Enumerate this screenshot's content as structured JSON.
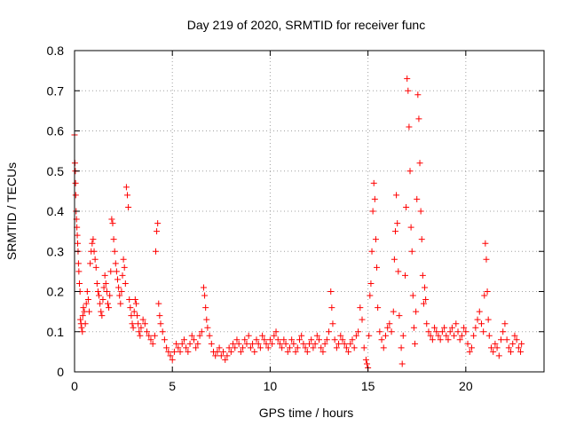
{
  "chart_data": {
    "type": "scatter",
    "title": "Day 219 of 2020, SRMTID for receiver func",
    "xlabel": "GPS time / hours",
    "ylabel": "SRMTID / TECUs",
    "xlim": [
      0,
      24
    ],
    "ylim": [
      0,
      0.8
    ],
    "xticks": [
      0,
      5,
      10,
      15,
      20
    ],
    "xtick_labels": [
      "0",
      "5",
      "10",
      "15",
      "20"
    ],
    "yticks": [
      0,
      0.1,
      0.2,
      0.3,
      0.4,
      0.5,
      0.6,
      0.7,
      0.8
    ],
    "ytick_labels": [
      "0",
      "0.1",
      "0.2",
      "0.3",
      "0.4",
      "0.5",
      "0.6",
      "0.7",
      "0.8"
    ],
    "grid": true,
    "marker": "+",
    "color": "#ff0000",
    "series": [
      {
        "name": "SRMTID",
        "points": [
          [
            0.0,
            0.59
          ],
          [
            0.02,
            0.52
          ],
          [
            0.04,
            0.5
          ],
          [
            0.05,
            0.47
          ],
          [
            0.06,
            0.44
          ],
          [
            0.08,
            0.4
          ],
          [
            0.1,
            0.38
          ],
          [
            0.12,
            0.36
          ],
          [
            0.14,
            0.34
          ],
          [
            0.16,
            0.32
          ],
          [
            0.18,
            0.3
          ],
          [
            0.2,
            0.27
          ],
          [
            0.22,
            0.25
          ],
          [
            0.25,
            0.22
          ],
          [
            0.28,
            0.2
          ],
          [
            0.3,
            0.13
          ],
          [
            0.33,
            0.12
          ],
          [
            0.36,
            0.11
          ],
          [
            0.4,
            0.1
          ],
          [
            0.42,
            0.14
          ],
          [
            0.45,
            0.16
          ],
          [
            0.5,
            0.15
          ],
          [
            0.55,
            0.12
          ],
          [
            0.6,
            0.17
          ],
          [
            0.65,
            0.2
          ],
          [
            0.7,
            0.18
          ],
          [
            0.75,
            0.15
          ],
          [
            0.8,
            0.27
          ],
          [
            0.85,
            0.3
          ],
          [
            0.9,
            0.32
          ],
          [
            0.95,
            0.33
          ],
          [
            1.0,
            0.3
          ],
          [
            1.05,
            0.28
          ],
          [
            1.1,
            0.26
          ],
          [
            1.15,
            0.22
          ],
          [
            1.2,
            0.2
          ],
          [
            1.25,
            0.19
          ],
          [
            1.3,
            0.17
          ],
          [
            1.35,
            0.15
          ],
          [
            1.4,
            0.14
          ],
          [
            1.45,
            0.18
          ],
          [
            1.5,
            0.21
          ],
          [
            1.55,
            0.24
          ],
          [
            1.6,
            0.22
          ],
          [
            1.65,
            0.2
          ],
          [
            1.7,
            0.17
          ],
          [
            1.75,
            0.16
          ],
          [
            1.8,
            0.19
          ],
          [
            1.85,
            0.25
          ],
          [
            1.9,
            0.38
          ],
          [
            1.95,
            0.37
          ],
          [
            2.0,
            0.33
          ],
          [
            2.05,
            0.3
          ],
          [
            2.1,
            0.27
          ],
          [
            2.15,
            0.25
          ],
          [
            2.2,
            0.23
          ],
          [
            2.25,
            0.21
          ],
          [
            2.3,
            0.19
          ],
          [
            2.35,
            0.17
          ],
          [
            2.4,
            0.2
          ],
          [
            2.45,
            0.24
          ],
          [
            2.5,
            0.28
          ],
          [
            2.55,
            0.26
          ],
          [
            2.6,
            0.22
          ],
          [
            2.65,
            0.46
          ],
          [
            2.7,
            0.44
          ],
          [
            2.75,
            0.41
          ],
          [
            2.8,
            0.18
          ],
          [
            2.85,
            0.16
          ],
          [
            2.9,
            0.14
          ],
          [
            2.95,
            0.12
          ],
          [
            3.0,
            0.11
          ],
          [
            3.05,
            0.15
          ],
          [
            3.1,
            0.18
          ],
          [
            3.15,
            0.17
          ],
          [
            3.2,
            0.14
          ],
          [
            3.25,
            0.12
          ],
          [
            3.3,
            0.1
          ],
          [
            3.35,
            0.09
          ],
          [
            3.4,
            0.11
          ],
          [
            3.5,
            0.13
          ],
          [
            3.6,
            0.12
          ],
          [
            3.7,
            0.1
          ],
          [
            3.8,
            0.09
          ],
          [
            3.9,
            0.08
          ],
          [
            4.0,
            0.07
          ],
          [
            4.1,
            0.09
          ],
          [
            4.15,
            0.3
          ],
          [
            4.2,
            0.35
          ],
          [
            4.25,
            0.37
          ],
          [
            4.3,
            0.17
          ],
          [
            4.35,
            0.14
          ],
          [
            4.4,
            0.12
          ],
          [
            4.5,
            0.1
          ],
          [
            4.6,
            0.08
          ],
          [
            4.7,
            0.06
          ],
          [
            4.8,
            0.05
          ],
          [
            4.9,
            0.04
          ],
          [
            5.0,
            0.03
          ],
          [
            5.1,
            0.05
          ],
          [
            5.2,
            0.07
          ],
          [
            5.3,
            0.06
          ],
          [
            5.4,
            0.05
          ],
          [
            5.5,
            0.07
          ],
          [
            5.6,
            0.08
          ],
          [
            5.7,
            0.06
          ],
          [
            5.8,
            0.05
          ],
          [
            5.9,
            0.07
          ],
          [
            6.0,
            0.09
          ],
          [
            6.1,
            0.08
          ],
          [
            6.2,
            0.06
          ],
          [
            6.3,
            0.07
          ],
          [
            6.4,
            0.09
          ],
          [
            6.5,
            0.1
          ],
          [
            6.6,
            0.21
          ],
          [
            6.65,
            0.19
          ],
          [
            6.7,
            0.16
          ],
          [
            6.75,
            0.13
          ],
          [
            6.8,
            0.11
          ],
          [
            6.9,
            0.09
          ],
          [
            7.0,
            0.07
          ],
          [
            7.1,
            0.05
          ],
          [
            7.2,
            0.04
          ],
          [
            7.3,
            0.05
          ],
          [
            7.4,
            0.06
          ],
          [
            7.5,
            0.04
          ],
          [
            7.6,
            0.05
          ],
          [
            7.7,
            0.03
          ],
          [
            7.8,
            0.04
          ],
          [
            7.9,
            0.06
          ],
          [
            8.0,
            0.05
          ],
          [
            8.1,
            0.07
          ],
          [
            8.2,
            0.06
          ],
          [
            8.3,
            0.08
          ],
          [
            8.4,
            0.07
          ],
          [
            8.5,
            0.05
          ],
          [
            8.6,
            0.06
          ],
          [
            8.7,
            0.08
          ],
          [
            8.8,
            0.07
          ],
          [
            8.9,
            0.09
          ],
          [
            9.0,
            0.06
          ],
          [
            9.1,
            0.07
          ],
          [
            9.2,
            0.05
          ],
          [
            9.3,
            0.08
          ],
          [
            9.4,
            0.07
          ],
          [
            9.5,
            0.06
          ],
          [
            9.6,
            0.09
          ],
          [
            9.7,
            0.08
          ],
          [
            9.8,
            0.07
          ],
          [
            9.9,
            0.06
          ],
          [
            10.0,
            0.08
          ],
          [
            10.1,
            0.07
          ],
          [
            10.2,
            0.09
          ],
          [
            10.3,
            0.1
          ],
          [
            10.4,
            0.08
          ],
          [
            10.5,
            0.07
          ],
          [
            10.6,
            0.06
          ],
          [
            10.7,
            0.08
          ],
          [
            10.8,
            0.07
          ],
          [
            10.9,
            0.05
          ],
          [
            11.0,
            0.06
          ],
          [
            11.1,
            0.08
          ],
          [
            11.2,
            0.07
          ],
          [
            11.3,
            0.05
          ],
          [
            11.4,
            0.06
          ],
          [
            11.5,
            0.08
          ],
          [
            11.6,
            0.09
          ],
          [
            11.7,
            0.07
          ],
          [
            11.8,
            0.06
          ],
          [
            11.9,
            0.05
          ],
          [
            12.0,
            0.07
          ],
          [
            12.1,
            0.08
          ],
          [
            12.2,
            0.06
          ],
          [
            12.3,
            0.07
          ],
          [
            12.4,
            0.09
          ],
          [
            12.5,
            0.08
          ],
          [
            12.6,
            0.06
          ],
          [
            12.7,
            0.05
          ],
          [
            12.8,
            0.07
          ],
          [
            12.9,
            0.08
          ],
          [
            13.0,
            0.1
          ],
          [
            13.1,
            0.2
          ],
          [
            13.15,
            0.16
          ],
          [
            13.2,
            0.12
          ],
          [
            13.3,
            0.08
          ],
          [
            13.4,
            0.06
          ],
          [
            13.5,
            0.07
          ],
          [
            13.6,
            0.09
          ],
          [
            13.7,
            0.08
          ],
          [
            13.8,
            0.07
          ],
          [
            13.9,
            0.06
          ],
          [
            14.0,
            0.05
          ],
          [
            14.1,
            0.07
          ],
          [
            14.2,
            0.08
          ],
          [
            14.3,
            0.06
          ],
          [
            14.4,
            0.09
          ],
          [
            14.5,
            0.1
          ],
          [
            14.6,
            0.16
          ],
          [
            14.7,
            0.13
          ],
          [
            14.8,
            0.06
          ],
          [
            14.9,
            0.03
          ],
          [
            14.95,
            0.02
          ],
          [
            15.0,
            0.01
          ],
          [
            15.05,
            0.09
          ],
          [
            15.1,
            0.19
          ],
          [
            15.15,
            0.22
          ],
          [
            15.2,
            0.3
          ],
          [
            15.25,
            0.4
          ],
          [
            15.3,
            0.47
          ],
          [
            15.35,
            0.43
          ],
          [
            15.4,
            0.33
          ],
          [
            15.45,
            0.26
          ],
          [
            15.5,
            0.16
          ],
          [
            15.6,
            0.1
          ],
          [
            15.7,
            0.08
          ],
          [
            15.8,
            0.06
          ],
          [
            15.9,
            0.09
          ],
          [
            16.0,
            0.11
          ],
          [
            16.1,
            0.12
          ],
          [
            16.2,
            0.1
          ],
          [
            16.3,
            0.15
          ],
          [
            16.35,
            0.28
          ],
          [
            16.4,
            0.35
          ],
          [
            16.45,
            0.44
          ],
          [
            16.5,
            0.37
          ],
          [
            16.55,
            0.25
          ],
          [
            16.6,
            0.14
          ],
          [
            16.7,
            0.06
          ],
          [
            16.75,
            0.02
          ],
          [
            16.8,
            0.09
          ],
          [
            16.9,
            0.24
          ],
          [
            16.95,
            0.41
          ],
          [
            17.0,
            0.73
          ],
          [
            17.05,
            0.7
          ],
          [
            17.1,
            0.61
          ],
          [
            17.15,
            0.5
          ],
          [
            17.2,
            0.36
          ],
          [
            17.25,
            0.3
          ],
          [
            17.3,
            0.19
          ],
          [
            17.35,
            0.11
          ],
          [
            17.4,
            0.07
          ],
          [
            17.45,
            0.15
          ],
          [
            17.5,
            0.43
          ],
          [
            17.55,
            0.69
          ],
          [
            17.6,
            0.63
          ],
          [
            17.65,
            0.52
          ],
          [
            17.7,
            0.4
          ],
          [
            17.75,
            0.33
          ],
          [
            17.8,
            0.24
          ],
          [
            17.85,
            0.17
          ],
          [
            17.9,
            0.21
          ],
          [
            17.95,
            0.18
          ],
          [
            18.0,
            0.12
          ],
          [
            18.1,
            0.1
          ],
          [
            18.2,
            0.09
          ],
          [
            18.3,
            0.08
          ],
          [
            18.4,
            0.11
          ],
          [
            18.5,
            0.1
          ],
          [
            18.6,
            0.09
          ],
          [
            18.7,
            0.08
          ],
          [
            18.8,
            0.1
          ],
          [
            18.9,
            0.11
          ],
          [
            19.0,
            0.09
          ],
          [
            19.1,
            0.08
          ],
          [
            19.2,
            0.1
          ],
          [
            19.3,
            0.11
          ],
          [
            19.4,
            0.09
          ],
          [
            19.5,
            0.12
          ],
          [
            19.6,
            0.1
          ],
          [
            19.7,
            0.08
          ],
          [
            19.8,
            0.09
          ],
          [
            19.9,
            0.11
          ],
          [
            20.0,
            0.1
          ],
          [
            20.1,
            0.07
          ],
          [
            20.2,
            0.05
          ],
          [
            20.3,
            0.06
          ],
          [
            20.4,
            0.09
          ],
          [
            20.5,
            0.11
          ],
          [
            20.6,
            0.13
          ],
          [
            20.7,
            0.15
          ],
          [
            20.8,
            0.12
          ],
          [
            20.9,
            0.1
          ],
          [
            20.95,
            0.19
          ],
          [
            21.0,
            0.32
          ],
          [
            21.05,
            0.28
          ],
          [
            21.1,
            0.2
          ],
          [
            21.15,
            0.13
          ],
          [
            21.2,
            0.09
          ],
          [
            21.3,
            0.06
          ],
          [
            21.4,
            0.05
          ],
          [
            21.5,
            0.07
          ],
          [
            21.6,
            0.06
          ],
          [
            21.7,
            0.04
          ],
          [
            21.8,
            0.08
          ],
          [
            21.9,
            0.1
          ],
          [
            22.0,
            0.12
          ],
          [
            22.1,
            0.08
          ],
          [
            22.2,
            0.06
          ],
          [
            22.3,
            0.05
          ],
          [
            22.4,
            0.07
          ],
          [
            22.5,
            0.09
          ],
          [
            22.6,
            0.08
          ],
          [
            22.7,
            0.06
          ],
          [
            22.8,
            0.05
          ],
          [
            22.85,
            0.07
          ]
        ]
      }
    ]
  }
}
